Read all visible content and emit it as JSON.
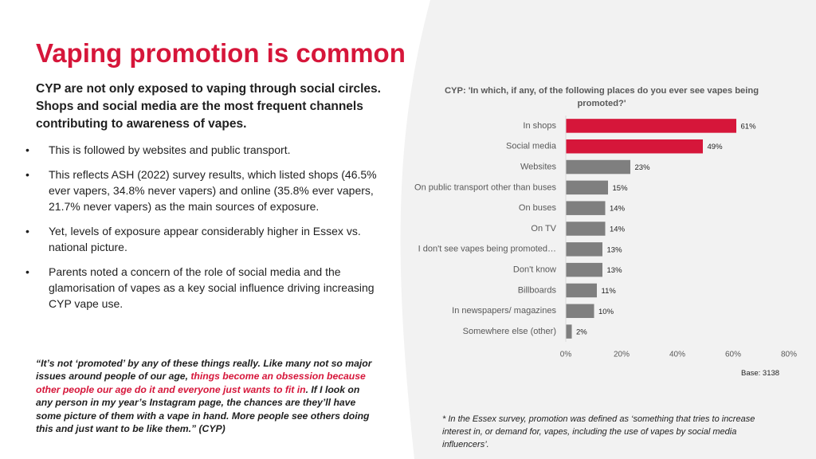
{
  "slide": {
    "title": "Vaping promotion is common",
    "subtitle": "CYP are not only exposed to vaping through social circles. Shops and social media are the most frequent channels contributing to awareness of vapes.",
    "bullets": [
      "This is followed by websites and public transport.",
      "This reflects ASH (2022) survey results, which listed shops (46.5% ever vapers, 34.8% never vapers) and online (35.8% ever vapers, 21.7% never vapers) as the main sources of exposure.",
      "Yet, levels of exposure appear considerably higher in Essex vs. national picture.",
      "Parents noted a concern of the role of social media and the glamorisation of vapes as a key social influence driving increasing CYP vape use."
    ],
    "bullet_symbol": "•",
    "quote": {
      "part1": "“It’s not ‘promoted’ by any of these things really. Like many not so major issues around people of our age, ",
      "highlight": "things become an obsession because other people our age do it and everyone just wants to fit in",
      "part2": ". If I look on any person in my year’s Instagram page, the chances are they’ll have some picture of them with a vape in hand. More people see others doing this and just want to be like them.” (CYP)"
    },
    "base": "Base: 3138",
    "footnote": "* In the Essex survey, promotion was defined as ‘something that tries to increase interest in, or demand for, vapes, including the use of vapes by social media influencers’."
  },
  "colors": {
    "accent": "#d6163a",
    "grey_bar": "#7f7f7f",
    "text_dark": "#1f1f1f",
    "text_grey": "#595959",
    "axis_line": "#d9d9d9"
  },
  "chart_data": {
    "type": "bar",
    "orientation": "horizontal",
    "title": "CYP: 'In which, if any, of the following places do you ever see vapes being promoted?'",
    "categories": [
      "In shops",
      "Social media",
      "Websites",
      "On public transport other than buses",
      "On buses",
      "On TV",
      "I don't see vapes being promoted…",
      "Don't know",
      "Billboards",
      "In newspapers/ magazines",
      "Somewhere else (other)"
    ],
    "values": [
      61,
      49,
      23,
      15,
      14,
      14,
      13,
      13,
      11,
      10,
      2
    ],
    "value_labels": [
      "61%",
      "49%",
      "23%",
      "15%",
      "14%",
      "14%",
      "13%",
      "13%",
      "11%",
      "10%",
      "2%"
    ],
    "highlighted": [
      "In shops",
      "Social media"
    ],
    "xlim": [
      0,
      80
    ],
    "xticks": [
      "0%",
      "20%",
      "40%",
      "60%",
      "80%"
    ],
    "grid": false
  }
}
